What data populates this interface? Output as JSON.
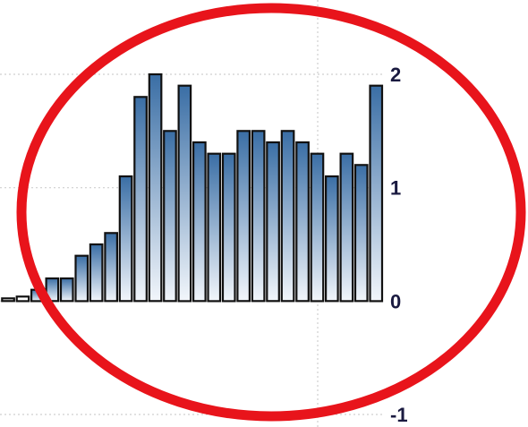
{
  "chart_data": {
    "type": "bar",
    "title": "",
    "xlabel": "",
    "ylabel": "",
    "ylim": [
      -1,
      2
    ],
    "yticks": [
      2,
      1,
      0,
      -1
    ],
    "ytick_labels": [
      "2",
      "1",
      "0",
      "-1"
    ],
    "y_axis_position": "right",
    "grid": true,
    "legend": "none",
    "bar_gradient": [
      "#3a6ea5",
      "#f2f6fb"
    ],
    "bar_outline": "#111111",
    "values": [
      0.02,
      0.04,
      0.1,
      0.2,
      0.2,
      0.4,
      0.5,
      0.6,
      1.1,
      1.8,
      2.0,
      1.5,
      1.9,
      1.4,
      1.3,
      1.3,
      1.5,
      1.5,
      1.4,
      1.5,
      1.4,
      1.3,
      1.1,
      1.3,
      1.2,
      1.9
    ],
    "bar_style": [
      "hollow",
      "hollow",
      "filled",
      "filled",
      "filled",
      "filled",
      "filled",
      "filled",
      "filled",
      "filled",
      "filled",
      "filled",
      "filled",
      "filled",
      "filled",
      "filled",
      "filled",
      "filled",
      "filled",
      "filled",
      "filled",
      "filled",
      "filled",
      "filled",
      "filled",
      "filled"
    ],
    "annotations": [
      {
        "shape": "ellipse",
        "color": "#e8141b",
        "encloses": "bars"
      }
    ]
  }
}
